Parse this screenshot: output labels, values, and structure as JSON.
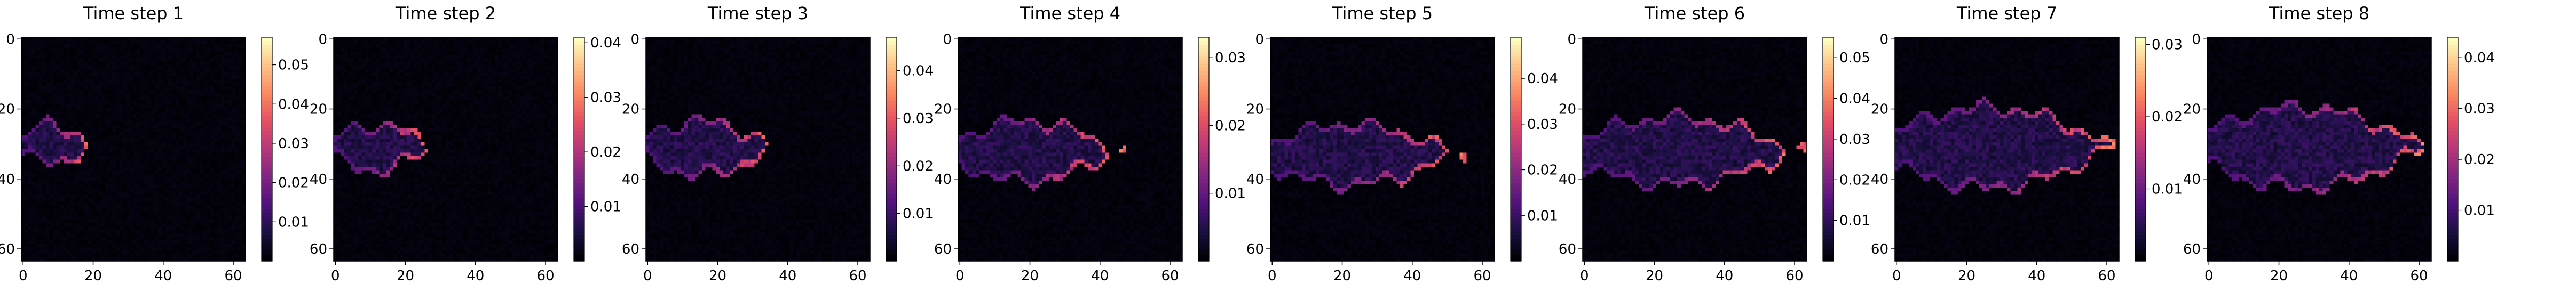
{
  "chart_data": [
    {
      "type": "heatmap",
      "title": "Time step 1",
      "xticks": [
        0,
        20,
        40,
        60
      ],
      "yticks": [
        0,
        20,
        40,
        60
      ],
      "grid_size": [
        64,
        64
      ],
      "xlim": [
        0,
        63
      ],
      "ylim": [
        63,
        0
      ],
      "colormap": "magma",
      "colorbar": {
        "min": 0,
        "max": 0.057,
        "ticks": [
          0.01,
          0.02,
          0.03,
          0.04,
          0.05
        ],
        "tick_labels": [
          "0.01",
          "0.02",
          "0.03",
          "0.04",
          "0.05"
        ]
      },
      "feature": {
        "tip_x": 20,
        "axis_y": 30,
        "max_halfwidth": 6,
        "tail_end": 0
      }
    },
    {
      "type": "heatmap",
      "title": "Time step 2",
      "xticks": [
        0,
        20,
        40,
        60
      ],
      "yticks": [
        0,
        20,
        40,
        60
      ],
      "grid_size": [
        64,
        64
      ],
      "xlim": [
        0,
        63
      ],
      "ylim": [
        63,
        0
      ],
      "colormap": "magma",
      "colorbar": {
        "min": 0,
        "max": 0.041,
        "ticks": [
          0.01,
          0.02,
          0.03,
          0.04
        ],
        "tick_labels": [
          "0.01",
          "0.02",
          "0.03",
          "0.04"
        ]
      },
      "feature": {
        "tip_x": 28,
        "axis_y": 31,
        "max_halfwidth": 7,
        "tail_end": 0
      }
    },
    {
      "type": "heatmap",
      "title": "Time step 3",
      "xticks": [
        0,
        20,
        40,
        60
      ],
      "yticks": [
        0,
        20,
        40,
        60
      ],
      "grid_size": [
        64,
        64
      ],
      "xlim": [
        0,
        63
      ],
      "ylim": [
        63,
        0
      ],
      "colormap": "magma",
      "colorbar": {
        "min": 0,
        "max": 0.047,
        "ticks": [
          0.01,
          0.02,
          0.03,
          0.04
        ],
        "tick_labels": [
          "0.01",
          "0.02",
          "0.03",
          "0.04"
        ]
      },
      "feature": {
        "tip_x": 37,
        "axis_y": 31,
        "max_halfwidth": 8,
        "tail_end": 0
      }
    },
    {
      "type": "heatmap",
      "title": "Time step 4",
      "xticks": [
        0,
        20,
        40,
        60
      ],
      "yticks": [
        0,
        20,
        40,
        60
      ],
      "grid_size": [
        64,
        64
      ],
      "xlim": [
        0,
        63
      ],
      "ylim": [
        63,
        0
      ],
      "colormap": "magma",
      "colorbar": {
        "min": 0,
        "max": 0.033,
        "ticks": [
          0.01,
          0.02,
          0.03
        ],
        "tick_labels": [
          "0.01",
          "0.02",
          "0.03"
        ]
      },
      "feature": {
        "tip_x": 46,
        "axis_y": 32,
        "max_halfwidth": 9,
        "tail_end": 0
      }
    },
    {
      "type": "heatmap",
      "title": "Time step 5",
      "xticks": [
        0,
        20,
        40,
        60
      ],
      "yticks": [
        0,
        20,
        40,
        60
      ],
      "grid_size": [
        64,
        64
      ],
      "xlim": [
        0,
        63
      ],
      "ylim": [
        63,
        0
      ],
      "colormap": "magma",
      "colorbar": {
        "min": 0,
        "max": 0.049,
        "ticks": [
          0.01,
          0.02,
          0.03,
          0.04
        ],
        "tick_labels": [
          "0.01",
          "0.02",
          "0.03",
          "0.04"
        ]
      },
      "feature": {
        "tip_x": 54,
        "axis_y": 33,
        "max_halfwidth": 9,
        "tail_end": 0
      }
    },
    {
      "type": "heatmap",
      "title": "Time step 6",
      "xticks": [
        0,
        20,
        40,
        60
      ],
      "yticks": [
        0,
        20,
        40,
        60
      ],
      "grid_size": [
        64,
        64
      ],
      "xlim": [
        0,
        63
      ],
      "ylim": [
        63,
        0
      ],
      "colormap": "magma",
      "colorbar": {
        "min": 0,
        "max": 0.055,
        "ticks": [
          0.01,
          0.02,
          0.03,
          0.04,
          0.05
        ],
        "tick_labels": [
          "0.01",
          "0.02",
          "0.03",
          "0.04",
          "0.05"
        ]
      },
      "feature": {
        "tip_x": 62,
        "axis_y": 32,
        "max_halfwidth": 10,
        "tail_end": 0
      }
    },
    {
      "type": "heatmap",
      "title": "Time step 7",
      "xticks": [
        0,
        20,
        40,
        60
      ],
      "yticks": [
        0,
        20,
        40,
        60
      ],
      "grid_size": [
        64,
        64
      ],
      "xlim": [
        0,
        63
      ],
      "ylim": [
        63,
        0
      ],
      "colormap": "magma",
      "colorbar": {
        "min": 0,
        "max": 0.031,
        "ticks": [
          0.01,
          0.02,
          0.03
        ],
        "tick_labels": [
          "0.01",
          "0.02",
          "0.03"
        ]
      },
      "feature": {
        "tip_x": 63,
        "axis_y": 31,
        "max_halfwidth": 12,
        "tail_end": 0
      }
    },
    {
      "type": "heatmap",
      "title": "Time step 8",
      "xticks": [
        0,
        20,
        40,
        60
      ],
      "yticks": [
        0,
        20,
        40,
        60
      ],
      "grid_size": [
        64,
        64
      ],
      "xlim": [
        0,
        63
      ],
      "ylim": [
        63,
        0
      ],
      "colormap": "magma",
      "colorbar": {
        "min": 0,
        "max": 0.044,
        "ticks": [
          0.01,
          0.02,
          0.03,
          0.04
        ],
        "tick_labels": [
          "0.01",
          "0.02",
          "0.03",
          "0.04"
        ]
      },
      "feature": {
        "tip_x": 63,
        "axis_y": 31,
        "max_halfwidth": 12,
        "tail_end": 0
      }
    }
  ]
}
